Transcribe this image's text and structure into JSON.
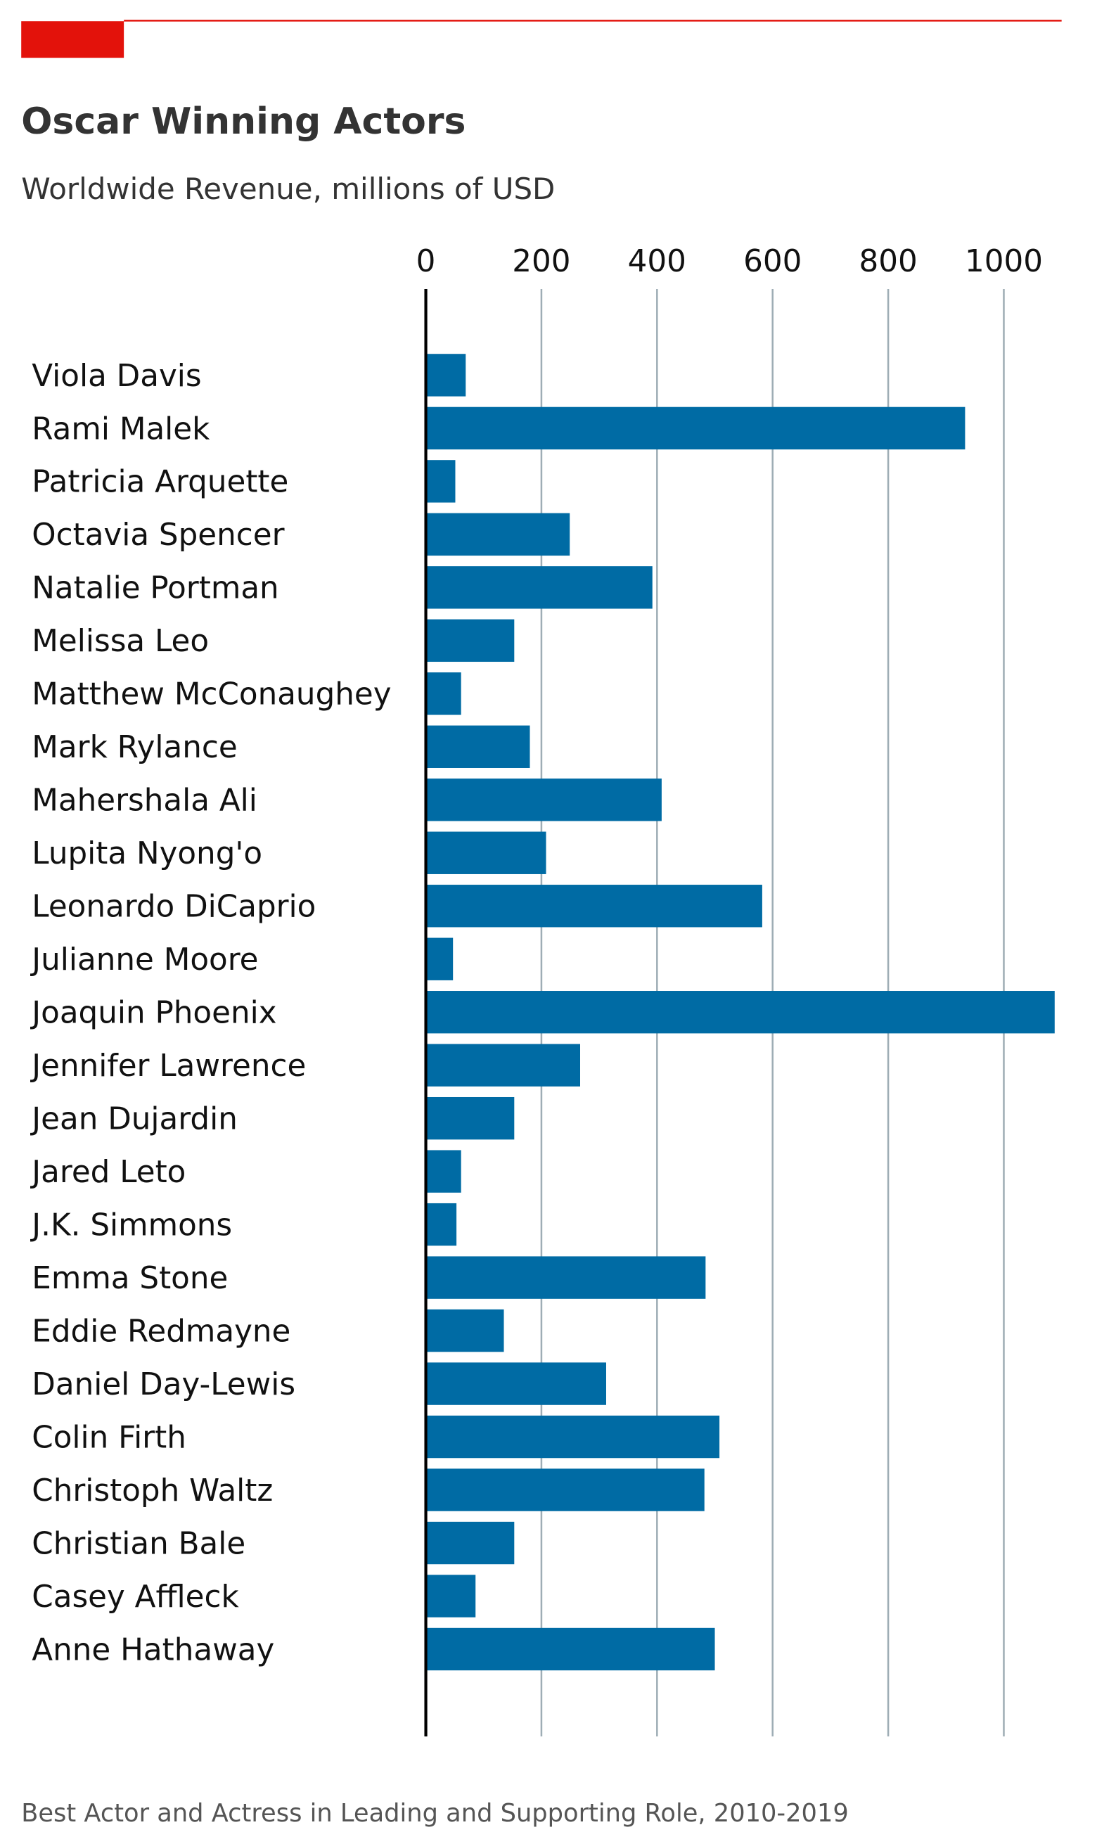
{
  "chart_data": {
    "type": "barh",
    "title": "Oscar Winning Actors",
    "subtitle": "Worldwide Revenue, millions of USD",
    "footnote": "Best Actor and Actress in Leading and Supporting Role, 2010-2019",
    "categories": [
      "Viola Davis",
      "Rami Malek",
      "Patricia Arquette",
      "Octavia Spencer",
      "Natalie Portman",
      "Melissa Leo",
      "Matthew McConaughey",
      "Mark Rylance",
      "Mahershala Ali",
      "Lupita Nyong'o",
      "Leonardo DiCaprio",
      "Julianne Moore",
      "Joaquin Phoenix",
      "Jennifer Lawrence",
      "Jean Dujardin",
      "Jared Leto",
      "J.K. Simmons",
      "Emma Stone",
      "Eddie Redmayne",
      "Daniel Day-Lewis",
      "Colin Firth",
      "Christoph Waltz",
      "Christian Bale",
      "Casey Affleck",
      "Anne Hathaway"
    ],
    "values": [
      69,
      933,
      51,
      249,
      392,
      153,
      61,
      180,
      408,
      208,
      582,
      47,
      1088,
      267,
      153,
      61,
      53,
      484,
      135,
      312,
      508,
      482,
      153,
      86,
      500
    ],
    "color": "#006ba4",
    "xlim": [
      0,
      1100
    ],
    "xticks": [
      0,
      200,
      400,
      600,
      800,
      1000
    ],
    "grid": true
  }
}
